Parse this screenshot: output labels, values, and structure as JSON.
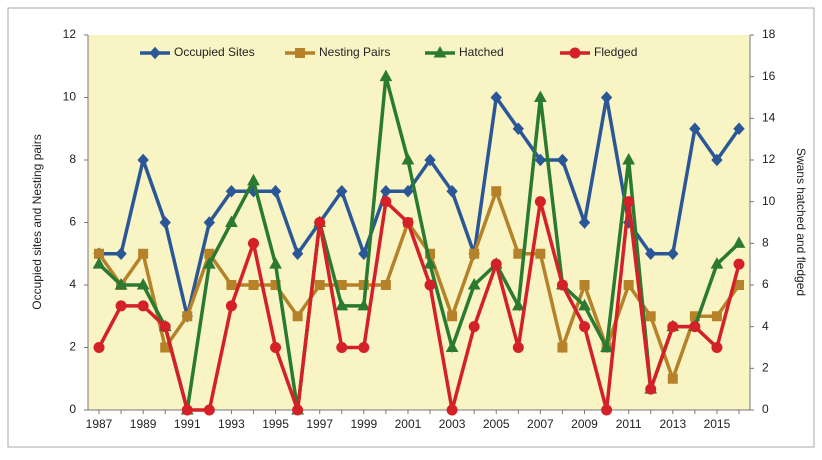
{
  "chart_data": {
    "type": "line",
    "categories": [
      "1987",
      null,
      "1989",
      null,
      "1991",
      null,
      "1993",
      null,
      "1995",
      null,
      "1997",
      null,
      "1999",
      null,
      "2001",
      null,
      "2003",
      null,
      "2005",
      null,
      "2007",
      null,
      "2009",
      null,
      "2011",
      null,
      "2013",
      null,
      "2015",
      null
    ],
    "series": [
      {
        "name": "Occupied Sites",
        "color": "#2b5797",
        "marker": "diamond",
        "values": [
          5,
          5,
          8,
          6,
          3,
          6,
          7,
          7,
          7,
          5,
          6,
          7,
          5,
          7,
          7,
          8,
          7,
          5,
          10,
          9,
          8,
          8,
          6,
          10,
          6,
          5,
          5,
          9,
          8,
          9
        ]
      },
      {
        "name": "Nesting Pairs",
        "color": "#b5822a",
        "marker": "square",
        "values": [
          5,
          4,
          5,
          2,
          3,
          5,
          4,
          4,
          4,
          3,
          4,
          4,
          4,
          4,
          6,
          5,
          3,
          5,
          7,
          5,
          5,
          2,
          4,
          2,
          4,
          3,
          1,
          3,
          3,
          4
        ]
      },
      {
        "name": "Hatched",
        "color": "#2a7a32",
        "marker": "triangle",
        "axis": "y2",
        "values": [
          7,
          6,
          6,
          4,
          0,
          7,
          9,
          11,
          7,
          0,
          9,
          5,
          5,
          16,
          12,
          7,
          3,
          6,
          7,
          5,
          15,
          6,
          5,
          3,
          12,
          1,
          4,
          4,
          7,
          8
        ]
      },
      {
        "name": "Fledged",
        "color": "#d42027",
        "marker": "circle",
        "axis": "y2",
        "values": [
          3,
          5,
          5,
          4,
          0,
          0,
          5,
          8,
          3,
          0,
          9,
          3,
          3,
          10,
          9,
          6,
          0,
          4,
          7,
          3,
          10,
          6,
          4,
          0,
          10,
          1,
          4,
          4,
          3,
          7
        ]
      }
    ],
    "ylabel": "Occupied sites and Nesting pairs",
    "y2label": "Swans hatched and fledged",
    "ylim": [
      0,
      12
    ],
    "yticks": [
      0,
      2,
      4,
      6,
      8,
      10,
      12
    ],
    "y2lim": [
      0,
      18
    ],
    "y2ticks": [
      0,
      2,
      4,
      6,
      8,
      10,
      12,
      14,
      16,
      18
    ],
    "legend": "top",
    "background": "#f8f4c4"
  }
}
